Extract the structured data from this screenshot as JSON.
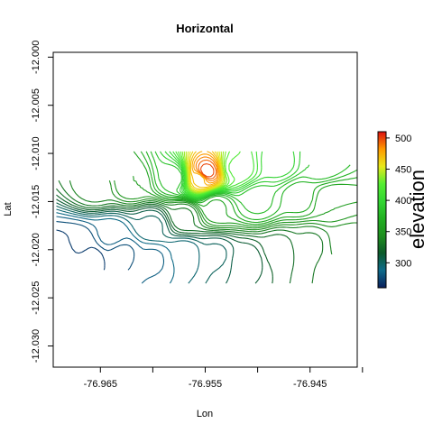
{
  "chart_data": {
    "type": "contour",
    "title": "Horizontal",
    "xlabel": "Lon",
    "ylabel": "Lat",
    "xlim": [
      -76.9695,
      -76.9405
    ],
    "ylim": [
      -12.0322,
      -11.9995
    ],
    "xticks": [
      -76.965,
      -76.96,
      -76.955,
      -76.95,
      -76.945,
      -76.94
    ],
    "xtick_labels": [
      "-76.965",
      "",
      "-76.955",
      "",
      "-76.945",
      ""
    ],
    "yticks": [
      -12.0,
      -12.005,
      -12.01,
      -12.015,
      -12.02,
      -12.025,
      -12.03
    ],
    "ytick_labels": [
      "-12.000",
      "-12.005",
      "-12.010",
      "-12.015",
      "-12.020",
      "-12.025",
      "-12.030"
    ],
    "colorbar": {
      "title": "elevation",
      "range": [
        260,
        510
      ],
      "ticks": [
        300,
        350,
        400,
        450,
        500
      ],
      "colors": [
        "#0a1f5c",
        "#0e6b8a",
        "#0c5a2a",
        "#1f8f1f",
        "#22b022",
        "#33d633",
        "#55ee33",
        "#e8e81a",
        "#ff9900",
        "#dd1111"
      ]
    },
    "series": [
      {
        "values": [
          {
            "x": -76.9688,
            "y": -12.0205,
            "elev": 265
          },
          {
            "x": -76.966,
            "y": -12.021,
            "elev": 268
          },
          {
            "x": -76.963,
            "y": -12.0205,
            "elev": 275
          },
          {
            "x": -76.96,
            "y": -12.021,
            "elev": 282
          },
          {
            "x": -76.957,
            "y": -12.0205,
            "elev": 290
          },
          {
            "x": -76.954,
            "y": -12.0205,
            "elev": 300
          },
          {
            "x": -76.951,
            "y": -12.021,
            "elev": 310
          },
          {
            "x": -76.948,
            "y": -12.02,
            "elev": 322
          },
          {
            "x": -76.945,
            "y": -12.0195,
            "elev": 330
          },
          {
            "x": -76.9415,
            "y": -12.0192,
            "elev": 340
          },
          {
            "x": -76.967,
            "y": -12.0195,
            "elev": 272
          },
          {
            "x": -76.964,
            "y": -12.0185,
            "elev": 285
          },
          {
            "x": -76.96,
            "y": -12.0175,
            "elev": 300
          },
          {
            "x": -76.957,
            "y": -12.0165,
            "elev": 330
          },
          {
            "x": -76.954,
            "y": -12.0155,
            "elev": 360
          },
          {
            "x": -76.95,
            "y": -12.015,
            "elev": 380
          },
          {
            "x": -76.946,
            "y": -12.0145,
            "elev": 370
          },
          {
            "x": -76.943,
            "y": -12.015,
            "elev": 355
          },
          {
            "x": -76.9655,
            "y": -12.0135,
            "elev": 340
          },
          {
            "x": -76.962,
            "y": -12.013,
            "elev": 355
          },
          {
            "x": -76.958,
            "y": -12.0125,
            "elev": 380
          },
          {
            "x": -76.9555,
            "y": -12.0125,
            "elev": 470
          },
          {
            "x": -76.955,
            "y": -12.012,
            "elev": 505
          },
          {
            "x": -76.952,
            "y": -12.0115,
            "elev": 420
          },
          {
            "x": -76.948,
            "y": -12.011,
            "elev": 400
          },
          {
            "x": -76.944,
            "y": -12.011,
            "elev": 385
          }
        ]
      }
    ]
  }
}
